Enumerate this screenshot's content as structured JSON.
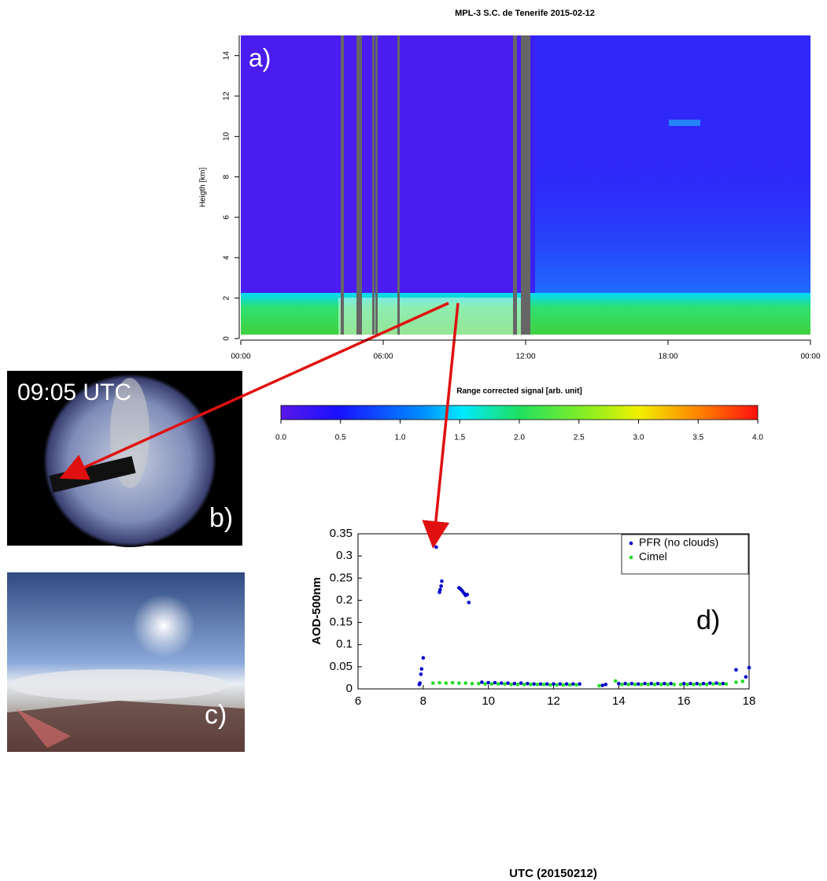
{
  "chart_data": [
    {
      "type": "heatmap",
      "title": "MPL-3 S.C. de Tenerife 2015-02-12",
      "ylabel": "Heigth [km]",
      "panel_label": "a)",
      "xlim": [
        0,
        24
      ],
      "xticks": [
        {
          "value": 0,
          "label": "00:00"
        },
        {
          "value": 6,
          "label": "06:00"
        },
        {
          "value": 12,
          "label": "12:00"
        },
        {
          "value": 18,
          "label": "18:00"
        },
        {
          "value": 24,
          "label": "00:00"
        }
      ],
      "ylim": [
        0,
        15
      ],
      "yticks": [
        0,
        2,
        4,
        6,
        8,
        10,
        12,
        14
      ],
      "colorbar": {
        "label": "Range corrected signal [arb. unit]",
        "clim": [
          0,
          4
        ],
        "ticks": [
          {
            "value": 0,
            "label": "0.0"
          },
          {
            "value": 0.5,
            "label": "0.5"
          },
          {
            "value": 1,
            "label": "1.0"
          },
          {
            "value": 1.5,
            "label": "1.5"
          },
          {
            "value": 2,
            "label": "2.0"
          },
          {
            "value": 2.5,
            "label": "2.5"
          },
          {
            "value": 3,
            "label": "3.0"
          },
          {
            "value": 3.5,
            "label": "3.5"
          },
          {
            "value": 4,
            "label": "4.0"
          }
        ]
      }
    },
    {
      "type": "scatter",
      "panel_label": "d)",
      "xlabel": "UTC (20150212)",
      "ylabel": "AOD-500nm",
      "legend": "upper right",
      "xlim": [
        6,
        18
      ],
      "xticks": [
        6,
        8,
        10,
        12,
        14,
        16,
        18
      ],
      "ylim": [
        0,
        0.35
      ],
      "yticks": [
        0,
        0.05,
        0.1,
        0.15,
        0.2,
        0.25,
        0.3,
        0.35
      ],
      "series": [
        {
          "name": "PFR (no clouds)",
          "color": "#0000cc",
          "x": [
            7.88,
            7.9,
            7.93,
            7.95,
            8.0,
            8.4,
            8.5,
            8.52,
            8.55,
            8.57,
            9.1,
            9.15,
            9.2,
            9.25,
            9.3,
            9.35,
            9.4,
            9.8,
            10.0,
            10.2,
            10.4,
            10.6,
            10.8,
            11.0,
            11.2,
            11.4,
            11.6,
            11.8,
            12.0,
            12.2,
            12.4,
            12.6,
            12.8,
            13.5,
            13.6,
            14.0,
            14.2,
            14.4,
            14.6,
            14.8,
            15.0,
            15.2,
            15.4,
            15.6,
            16.0,
            16.2,
            16.4,
            16.6,
            16.8,
            17.0,
            17.2,
            17.6,
            17.9,
            18.0
          ],
          "y": [
            0.01,
            0.013,
            0.033,
            0.045,
            0.07,
            0.32,
            0.218,
            0.224,
            0.232,
            0.243,
            0.228,
            0.225,
            0.221,
            0.216,
            0.211,
            0.213,
            0.195,
            0.015,
            0.014,
            0.014,
            0.013,
            0.013,
            0.012,
            0.013,
            0.012,
            0.011,
            0.011,
            0.011,
            0.011,
            0.011,
            0.011,
            0.011,
            0.011,
            0.008,
            0.01,
            0.012,
            0.012,
            0.012,
            0.011,
            0.012,
            0.012,
            0.012,
            0.012,
            0.012,
            0.012,
            0.012,
            0.012,
            0.012,
            0.013,
            0.013,
            0.012,
            0.043,
            0.027,
            0.048
          ]
        },
        {
          "name": "Cimel",
          "color": "#22dd22",
          "x": [
            8.3,
            8.5,
            8.7,
            8.9,
            9.1,
            9.3,
            9.5,
            9.7,
            9.9,
            10.1,
            10.3,
            10.5,
            10.7,
            10.9,
            11.1,
            11.3,
            11.5,
            11.7,
            11.9,
            12.1,
            12.3,
            12.5,
            12.7,
            13.4,
            13.9,
            14.1,
            14.3,
            14.5,
            14.7,
            14.9,
            15.1,
            15.3,
            15.5,
            15.7,
            15.9,
            16.1,
            16.3,
            16.5,
            16.7,
            16.9,
            17.1,
            17.3,
            17.6,
            17.8
          ],
          "y": [
            0.013,
            0.014,
            0.013,
            0.014,
            0.013,
            0.013,
            0.012,
            0.012,
            0.011,
            0.011,
            0.011,
            0.011,
            0.01,
            0.01,
            0.01,
            0.01,
            0.01,
            0.01,
            0.009,
            0.009,
            0.009,
            0.009,
            0.009,
            0.007,
            0.018,
            0.01,
            0.01,
            0.01,
            0.01,
            0.01,
            0.01,
            0.01,
            0.01,
            0.01,
            0.01,
            0.01,
            0.01,
            0.01,
            0.01,
            0.011,
            0.011,
            0.011,
            0.015,
            0.017
          ]
        }
      ]
    }
  ],
  "photos": [
    {
      "caption": "09:05 UTC",
      "label": "b)"
    },
    {
      "label": "c)"
    }
  ]
}
